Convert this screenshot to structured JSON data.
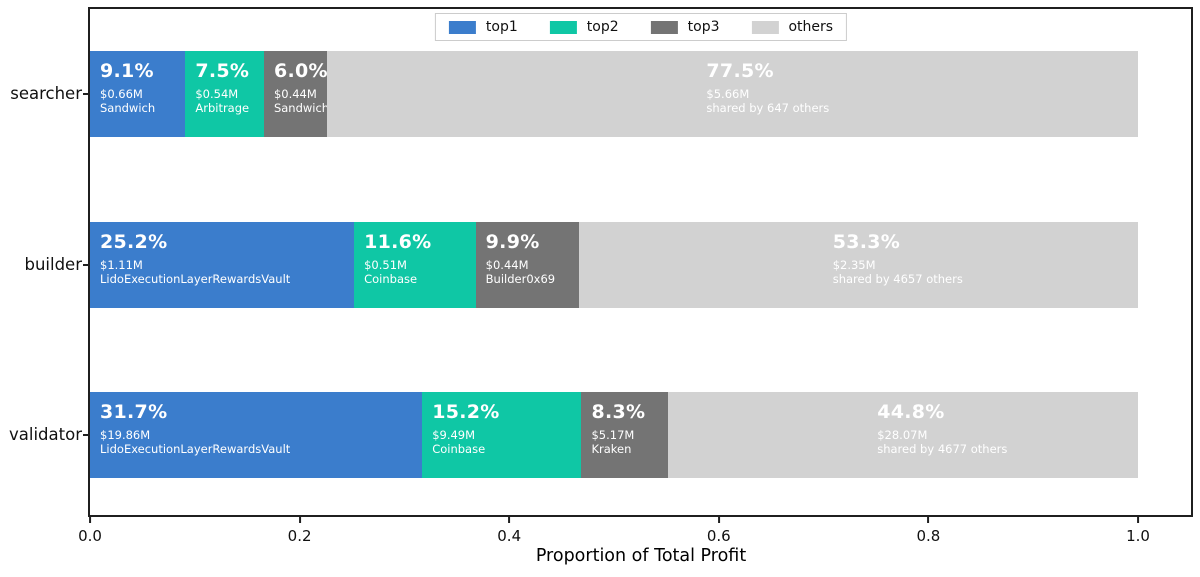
{
  "palette": {
    "top1": "#3b7dcc",
    "top2": "#0fc7a5",
    "top3": "#747474",
    "others": "#d2d2d2",
    "frame": "#1f1f1f"
  },
  "legend": {
    "items": [
      {
        "label": "top1",
        "color_key": "top1"
      },
      {
        "label": "top2",
        "color_key": "top2"
      },
      {
        "label": "top3",
        "color_key": "top3"
      },
      {
        "label": "others",
        "color_key": "others"
      }
    ]
  },
  "axis": {
    "xlabel": "Proportion of Total Profit",
    "xtick_labels": [
      "0.0",
      "0.2",
      "0.4",
      "0.6",
      "0.8",
      "1.0"
    ]
  },
  "bars": [
    {
      "category": "searcher",
      "segments": [
        {
          "type": "top1",
          "pct": 9.1,
          "pct_label": "9.1%",
          "value": "$0.66M",
          "name": "Sandwich"
        },
        {
          "type": "top2",
          "pct": 7.5,
          "pct_label": "7.5%",
          "value": "$0.54M",
          "name": "Arbitrage"
        },
        {
          "type": "top3",
          "pct": 6.0,
          "pct_label": "6.0%",
          "value": "$0.44M",
          "name": "Sandwich"
        },
        {
          "type": "others",
          "pct": 77.5,
          "pct_label": "77.5%",
          "value": "$5.66M",
          "name": "shared by 647 others"
        }
      ]
    },
    {
      "category": "builder",
      "segments": [
        {
          "type": "top1",
          "pct": 25.2,
          "pct_label": "25.2%",
          "value": "$1.11M",
          "name": "LidoExecutionLayerRewardsVault"
        },
        {
          "type": "top2",
          "pct": 11.6,
          "pct_label": "11.6%",
          "value": "$0.51M",
          "name": "Coinbase"
        },
        {
          "type": "top3",
          "pct": 9.9,
          "pct_label": "9.9%",
          "value": "$0.44M",
          "name": "Builder0x69"
        },
        {
          "type": "others",
          "pct": 53.3,
          "pct_label": "53.3%",
          "value": "$2.35M",
          "name": "shared by 4657 others"
        }
      ]
    },
    {
      "category": "validator",
      "segments": [
        {
          "type": "top1",
          "pct": 31.7,
          "pct_label": "31.7%",
          "value": "$19.86M",
          "name": "LidoExecutionLayerRewardsVault"
        },
        {
          "type": "top2",
          "pct": 15.2,
          "pct_label": "15.2%",
          "value": "$9.49M",
          "name": "Coinbase"
        },
        {
          "type": "top3",
          "pct": 8.3,
          "pct_label": "8.3%",
          "value": "$5.17M",
          "name": "Kraken"
        },
        {
          "type": "others",
          "pct": 44.8,
          "pct_label": "44.8%",
          "value": "$28.07M",
          "name": "shared by 4677 others"
        }
      ]
    }
  ],
  "chart_data": {
    "type": "bar",
    "subtype": "horizontal-stacked-proportion",
    "title": "",
    "xlabel": "Proportion of Total Profit",
    "ylabel": "",
    "categories": [
      "searcher",
      "builder",
      "validator"
    ],
    "xlim": [
      0.0,
      1.05
    ],
    "xticks": [
      0.0,
      0.2,
      0.4,
      0.6,
      0.8,
      1.0
    ],
    "grid": false,
    "legend_position": "upper center",
    "legend_entries": [
      "top1",
      "top2",
      "top3",
      "others"
    ],
    "series": [
      {
        "name": "top1",
        "color": "#3b7dcc",
        "values": [
          0.091,
          0.252,
          0.317
        ],
        "annotations": [
          "9.1% $0.66M Sandwich",
          "25.2% $1.11M LidoExecutionLayerRewardsVault",
          "31.7% $19.86M LidoExecutionLayerRewardsVault"
        ]
      },
      {
        "name": "top2",
        "color": "#0fc7a5",
        "values": [
          0.075,
          0.116,
          0.152
        ],
        "annotations": [
          "7.5% $0.54M Arbitrage",
          "11.6% $0.51M Coinbase",
          "15.2% $9.49M Coinbase"
        ]
      },
      {
        "name": "top3",
        "color": "#747474",
        "values": [
          0.06,
          0.099,
          0.083
        ],
        "annotations": [
          "6.0% $0.44M Sandwich",
          "9.9% $0.44M Builder0x69",
          "8.3% $5.17M Kraken"
        ]
      },
      {
        "name": "others",
        "color": "#d2d2d2",
        "values": [
          0.775,
          0.533,
          0.448
        ],
        "annotations": [
          "77.5% $5.66M shared by 647 others",
          "53.3% $2.35M shared by 4657 others",
          "44.8% $28.07M shared by 4677 others"
        ]
      }
    ]
  }
}
